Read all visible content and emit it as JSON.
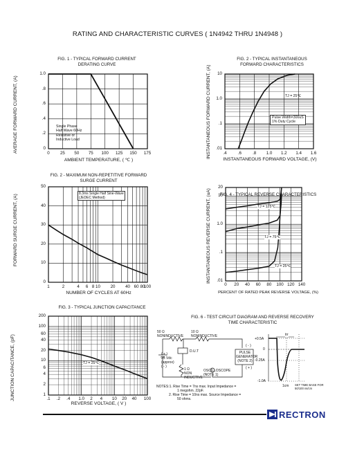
{
  "title": "RATING AND CHARACTERISTIC CURVES ( 1N4942 THRU 1N4948 )",
  "fig1": {
    "title_l1": "FIG. 1 - TYPICAL FORWARD CURRENT",
    "title_l2": "DERATING CURVE",
    "ylabel": "AVERAGE FORWARD CURRENT, (A)",
    "xlabel": "AMBIENT TEMPERATURE, ( ℃ )",
    "note": [
      "Single Phase",
      "Half Wave 60Hz",
      "Resistive or",
      "Inductive Load"
    ],
    "yticks": [
      "1.0",
      ".8",
      ".6",
      ".4",
      ".2",
      "0"
    ],
    "xticks": [
      "0",
      "25",
      "50",
      "75",
      "100",
      "125",
      "150",
      "175"
    ]
  },
  "fig2": {
    "title_l1": "FIG. 2 - TYPICAL INSTANTANEOUS",
    "title_l2": "FORWARD CHARACTERISTICS",
    "ylabel": "INSTANTANEOUS FORWARD CURRENT, (A)",
    "xlabel": "INSTANTANEOUS FORWARD VOLTAGE, (V)",
    "tj": "TJ = 25℃",
    "note": [
      "Pulse Width=300uS",
      "1% Duty Cycle"
    ],
    "yticks": [
      "10",
      "1.0",
      ".1",
      ".01"
    ],
    "xticks": [
      ".4",
      ".6",
      ".8",
      "1.0",
      "1.2",
      "1.4",
      "1.6"
    ]
  },
  "fig3": {
    "title_l1": "FIG. 2 - MAXIMUM NON-REPETITIVE FORWARD",
    "title_l2": "SURGE CURRENT",
    "ylabel": "FORWARD SURGE CURRENT, (A)",
    "xlabel": "NUMBER OF CYCLES AT 60Hz",
    "note": [
      "8.3ms Single Half Sine-Wave",
      "(JEDEC Method)"
    ],
    "yticks": [
      "50",
      "40",
      "30",
      "20",
      "10",
      "0"
    ],
    "xticks": [
      "1",
      "2",
      "4",
      "6",
      "8",
      "10",
      "20",
      "40",
      "60",
      "80",
      "100"
    ]
  },
  "fig4": {
    "title": "FIG. 4 - TYPICAL REVERSE CHARACTERISTICS",
    "ylabel": "INSTANTANEOUS REVERSE CURRENT, (uA)",
    "xlabel": "PERCENT OF RATED PEAK REVERSE VOLTAGE, (%)",
    "labels": [
      "TJ = 125℃",
      "TJ = 75℃",
      "TJ = 25℃"
    ],
    "yticks": [
      "20",
      "10",
      "1.0",
      ".1",
      ".01"
    ],
    "xticks": [
      "0",
      "20",
      "40",
      "60",
      "80",
      "100",
      "120",
      "140"
    ]
  },
  "fig5": {
    "title": "FIG. 3 - TYPICAL JUNCTION CAPACITANCE",
    "ylabel": "JUNCTION CAPACITANCE, (pF)",
    "xlabel": "REVERSE VOLTAGE, ( V )",
    "tj": "TJ = 25℃",
    "yticks": [
      "200",
      "100",
      "60",
      "40",
      "20",
      "10",
      "6",
      "4",
      "2",
      "1"
    ],
    "xticks": [
      ".1",
      ".2",
      ".4",
      "1.0",
      "2",
      "4",
      "10",
      "20",
      "40",
      "100"
    ]
  },
  "fig6": {
    "title_l1": "FIG. 6 - TEST CIRCUIT DIAGRAM  AND REVERSE RECOVERY",
    "title_l2": "TIME CHARACTERISTIC",
    "r1": [
      "50 Ω",
      "NONINDUCTIVE"
    ],
    "r2": [
      "10 Ω",
      "NONINDUCTIVE"
    ],
    "dut": "D.U.T",
    "vdc": [
      "( + )",
      "25 Vdc",
      "(approx)",
      "( - )"
    ],
    "r3": [
      "1 Ω",
      "NON",
      "INDUCTIVE"
    ],
    "pulse": [
      "PULSE",
      "GENERATOR",
      "(NOTE 2)"
    ],
    "pulse_pol": [
      "( - )",
      "( + )"
    ],
    "scope": [
      "OSCILLOSCOPE",
      "(NOTE 1)"
    ],
    "notes": [
      "NOTES:1. Rise Time = 7ns max. Input Impedance =",
      "1 megohm. 22pF.",
      "2. Rise Time = 10ns max. Source Impedance =",
      "50 ohms."
    ],
    "wave_labels": [
      "+0.5A",
      "0",
      "-0.25A",
      "-1.0A"
    ],
    "trr": "trr",
    "set_time": [
      "SET TIME BASE FOR",
      "50/100 ns/cm"
    ],
    "one_cm": "1cm"
  },
  "brand": "RECTRON"
}
